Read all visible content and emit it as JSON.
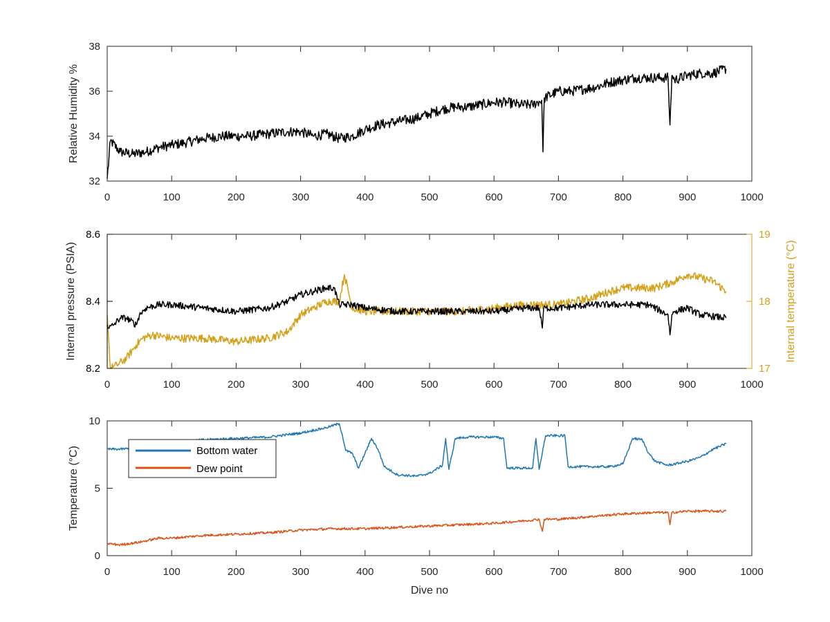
{
  "chart_data": [
    {
      "type": "line",
      "id": "humidity",
      "ylabel": "Relative Humidity %",
      "xlabel": "",
      "xlim": [
        0,
        1000
      ],
      "ylim": [
        32,
        38
      ],
      "xticks": [
        "0",
        "100",
        "200",
        "300",
        "400",
        "500",
        "600",
        "700",
        "800",
        "900",
        "1000"
      ],
      "yticks": [
        "32",
        "34",
        "36",
        "38"
      ],
      "series": [
        {
          "color": "#000000",
          "x": [
            0,
            5,
            20,
            40,
            60,
            80,
            100,
            120,
            150,
            180,
            200,
            220,
            250,
            280,
            300,
            320,
            340,
            360,
            380,
            400,
            420,
            440,
            460,
            480,
            500,
            520,
            540,
            560,
            580,
            600,
            620,
            640,
            660,
            674,
            676,
            678,
            700,
            720,
            740,
            760,
            780,
            800,
            820,
            840,
            860,
            870,
            873,
            876,
            880,
            900,
            920,
            940,
            960
          ],
          "y": [
            32.1,
            33.8,
            33.3,
            33.2,
            33.3,
            33.5,
            33.6,
            33.7,
            33.9,
            34.0,
            34.0,
            34.0,
            34.1,
            34.2,
            34.2,
            34.0,
            34.1,
            33.9,
            34.0,
            34.3,
            34.5,
            34.6,
            34.7,
            34.8,
            35.0,
            35.2,
            35.3,
            35.3,
            35.4,
            35.5,
            35.5,
            35.4,
            35.4,
            35.6,
            33.3,
            35.7,
            36.0,
            36.0,
            36.1,
            36.2,
            36.4,
            36.5,
            36.6,
            36.6,
            36.6,
            36.6,
            34.5,
            36.7,
            36.5,
            36.7,
            36.8,
            36.8,
            37.0
          ],
          "noise": 0.45
        }
      ]
    },
    {
      "type": "line",
      "id": "pressure-temperature",
      "ylabel": "Internal pressure (PSIA)",
      "ylabel_right": "Internal temperature (°C)",
      "xlabel": "",
      "xlim": [
        0,
        1000
      ],
      "ylim": [
        8.2,
        8.6
      ],
      "ylim_right": [
        17,
        19
      ],
      "xticks": [
        "0",
        "100",
        "200",
        "300",
        "400",
        "500",
        "600",
        "700",
        "800",
        "900",
        "1000"
      ],
      "yticks": [
        "8.2",
        "8.4",
        "8.6"
      ],
      "yticks_right": [
        "17",
        "18",
        "19"
      ],
      "series": [
        {
          "axis": "left",
          "color": "#000000",
          "x": [
            0,
            3,
            10,
            20,
            30,
            45,
            50,
            60,
            80,
            100,
            150,
            200,
            250,
            280,
            300,
            320,
            340,
            352,
            360,
            380,
            400,
            450,
            500,
            550,
            600,
            650,
            670,
            675,
            677,
            680,
            700,
            750,
            800,
            820,
            840,
            860,
            870,
            873,
            876,
            880,
            900,
            920,
            960
          ],
          "y": [
            8.33,
            8.32,
            8.33,
            8.35,
            8.35,
            8.33,
            8.36,
            8.38,
            8.39,
            8.39,
            8.38,
            8.37,
            8.38,
            8.4,
            8.42,
            8.43,
            8.44,
            8.44,
            8.39,
            8.39,
            8.38,
            8.37,
            8.37,
            8.37,
            8.37,
            8.38,
            8.38,
            8.32,
            8.38,
            8.38,
            8.38,
            8.39,
            8.39,
            8.39,
            8.39,
            8.37,
            8.36,
            8.3,
            8.36,
            8.37,
            8.38,
            8.36,
            8.35
          ],
          "noise": 0.02
        },
        {
          "axis": "right",
          "color": "#D4A017",
          "x": [
            0,
            5,
            15,
            30,
            45,
            55,
            70,
            100,
            150,
            200,
            250,
            280,
            300,
            320,
            340,
            360,
            368,
            380,
            400,
            450,
            500,
            550,
            600,
            650,
            700,
            750,
            780,
            800,
            850,
            880,
            900,
            940,
            960
          ],
          "y": [
            17.8,
            17.0,
            17.05,
            17.15,
            17.35,
            17.45,
            17.5,
            17.45,
            17.45,
            17.4,
            17.45,
            17.55,
            17.8,
            17.9,
            18.0,
            18.0,
            18.4,
            17.9,
            17.85,
            17.85,
            17.85,
            17.85,
            17.9,
            17.95,
            17.95,
            18.05,
            18.15,
            18.2,
            18.2,
            18.3,
            18.4,
            18.3,
            18.15
          ],
          "noise": 0.12
        }
      ]
    },
    {
      "type": "line",
      "id": "temperatures",
      "ylabel": "Temperature (°C)",
      "xlabel": "Dive no",
      "xlim": [
        0,
        1000
      ],
      "ylim": [
        0,
        10
      ],
      "xticks": [
        "0",
        "100",
        "200",
        "300",
        "400",
        "500",
        "600",
        "700",
        "800",
        "900",
        "1000"
      ],
      "yticks": [
        "0",
        "5",
        "10"
      ],
      "legend_position": "top-left",
      "series": [
        {
          "name": "Bottom water",
          "color": "#1F77B4",
          "x": [
            0,
            20,
            50,
            100,
            150,
            200,
            250,
            300,
            340,
            360,
            365,
            370,
            380,
            390,
            400,
            410,
            420,
            430,
            450,
            480,
            500,
            520,
            525,
            530,
            540,
            560,
            580,
            600,
            615,
            620,
            640,
            660,
            665,
            670,
            680,
            700,
            710,
            715,
            720,
            750,
            780,
            800,
            815,
            830,
            840,
            850,
            870,
            900,
            920,
            940,
            960
          ],
          "y": [
            7.9,
            7.9,
            8.0,
            8.4,
            8.6,
            8.7,
            8.8,
            9.1,
            9.5,
            9.8,
            8.9,
            7.8,
            7.6,
            6.5,
            7.6,
            8.7,
            7.9,
            6.6,
            6.0,
            5.9,
            6.1,
            6.7,
            8.7,
            6.4,
            8.7,
            8.8,
            8.8,
            8.8,
            8.7,
            6.5,
            6.5,
            6.5,
            8.7,
            6.4,
            8.9,
            8.9,
            8.9,
            6.6,
            6.6,
            6.6,
            6.6,
            6.8,
            8.7,
            8.6,
            7.6,
            7.0,
            6.7,
            7.0,
            7.3,
            7.9,
            8.3
          ],
          "noise": 0.18
        },
        {
          "name": "Dew point",
          "color": "#D95319",
          "x": [
            0,
            20,
            50,
            80,
            100,
            150,
            200,
            250,
            300,
            350,
            400,
            450,
            500,
            550,
            600,
            650,
            670,
            675,
            678,
            700,
            750,
            800,
            850,
            870,
            873,
            876,
            900,
            960
          ],
          "y": [
            0.9,
            0.8,
            1.0,
            1.3,
            1.3,
            1.5,
            1.6,
            1.7,
            1.9,
            2.0,
            2.0,
            2.1,
            2.2,
            2.3,
            2.4,
            2.6,
            2.7,
            1.8,
            2.7,
            2.7,
            2.9,
            3.1,
            3.2,
            3.2,
            2.3,
            3.2,
            3.3,
            3.3
          ],
          "noise": 0.18
        }
      ]
    }
  ]
}
